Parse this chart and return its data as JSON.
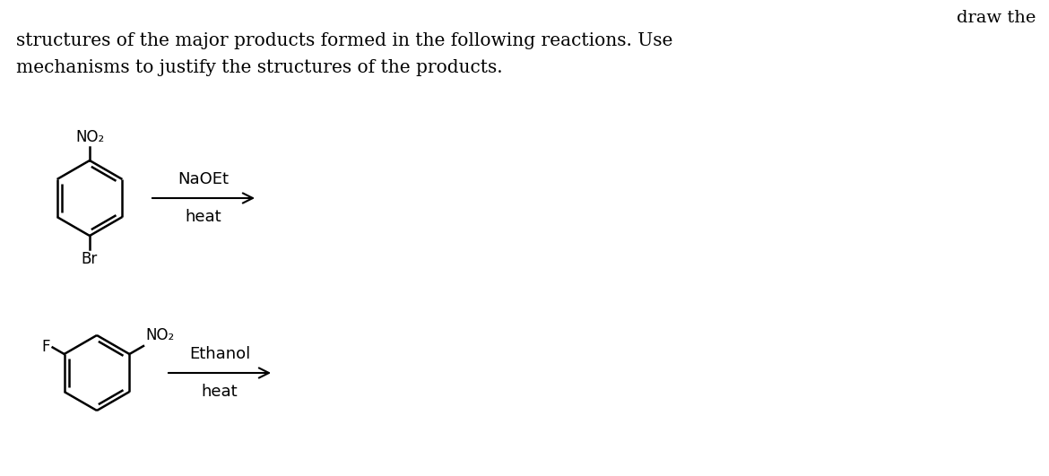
{
  "bg_color": "#ffffff",
  "text_color": "#000000",
  "title_line1": "structures of the major products formed in the following reactions. Use",
  "title_line2": "mechanisms to justify the structures of the products.",
  "draw_the": "draw the",
  "rxn1_reagent1": "NaOEt",
  "rxn1_reagent2": "heat",
  "rxn2_reagent1": "Ethanol",
  "rxn2_reagent2": "heat",
  "rxn1_label_no2": "NO₂",
  "rxn1_label_br": "Br",
  "rxn2_label_no2": "NO₂",
  "rxn2_label_f": "F",
  "font_size_title": 14.5,
  "font_size_reagent": 13,
  "font_size_atom": 12,
  "font_size_draw": 14
}
